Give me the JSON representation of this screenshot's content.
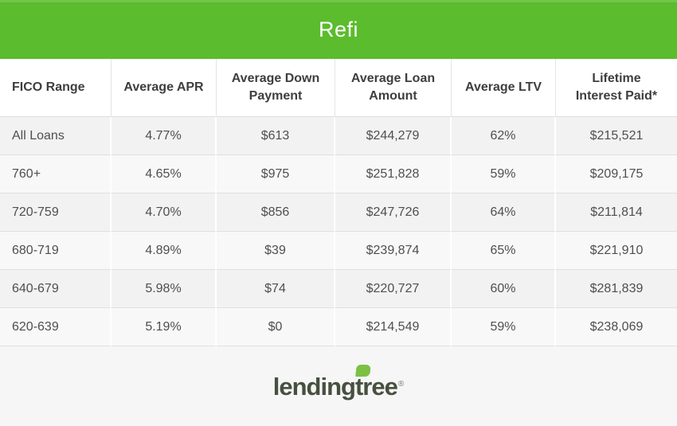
{
  "banner": {
    "title": "Refi"
  },
  "chart_data": {
    "type": "table",
    "title": "Refi",
    "columns": [
      "FICO Range",
      "Average APR",
      "Average Down\nPayment",
      "Average Loan\nAmount",
      "Average LTV",
      "Lifetime\nInterest Paid*"
    ],
    "rows": [
      {
        "fico_range": "All Loans",
        "average_apr": "4.77%",
        "average_down_payment": "$613",
        "average_loan_amount": "$244,279",
        "average_ltv": "62%",
        "lifetime_interest_paid": "$215,521"
      },
      {
        "fico_range": "760+",
        "average_apr": "4.65%",
        "average_down_payment": "$975",
        "average_loan_amount": "$251,828",
        "average_ltv": "59%",
        "lifetime_interest_paid": "$209,175"
      },
      {
        "fico_range": "720-759",
        "average_apr": "4.70%",
        "average_down_payment": "$856",
        "average_loan_amount": "$247,726",
        "average_ltv": "64%",
        "lifetime_interest_paid": "$211,814"
      },
      {
        "fico_range": "680-719",
        "average_apr": "4.89%",
        "average_down_payment": "$39",
        "average_loan_amount": "$239,874",
        "average_ltv": "65%",
        "lifetime_interest_paid": "$221,910"
      },
      {
        "fico_range": "640-679",
        "average_apr": "5.98%",
        "average_down_payment": "$74",
        "average_loan_amount": "$220,727",
        "average_ltv": "60%",
        "lifetime_interest_paid": "$281,839"
      },
      {
        "fico_range": "620-639",
        "average_apr": "5.19%",
        "average_down_payment": "$0",
        "average_loan_amount": "$214,549",
        "average_ltv": "59%",
        "lifetime_interest_paid": "$238,069"
      }
    ],
    "layout": {
      "grid": "on",
      "row_striping": true
    }
  },
  "footer": {
    "brand_lending": "lending",
    "brand_tree": "tree",
    "registered_mark": "®"
  },
  "colors": {
    "banner_green": "#5bbc2d",
    "leaf_green": "#7cc142",
    "logo_text": "#475040",
    "row_odd": "#f1f2f1",
    "row_even": "#f8f8f8"
  }
}
